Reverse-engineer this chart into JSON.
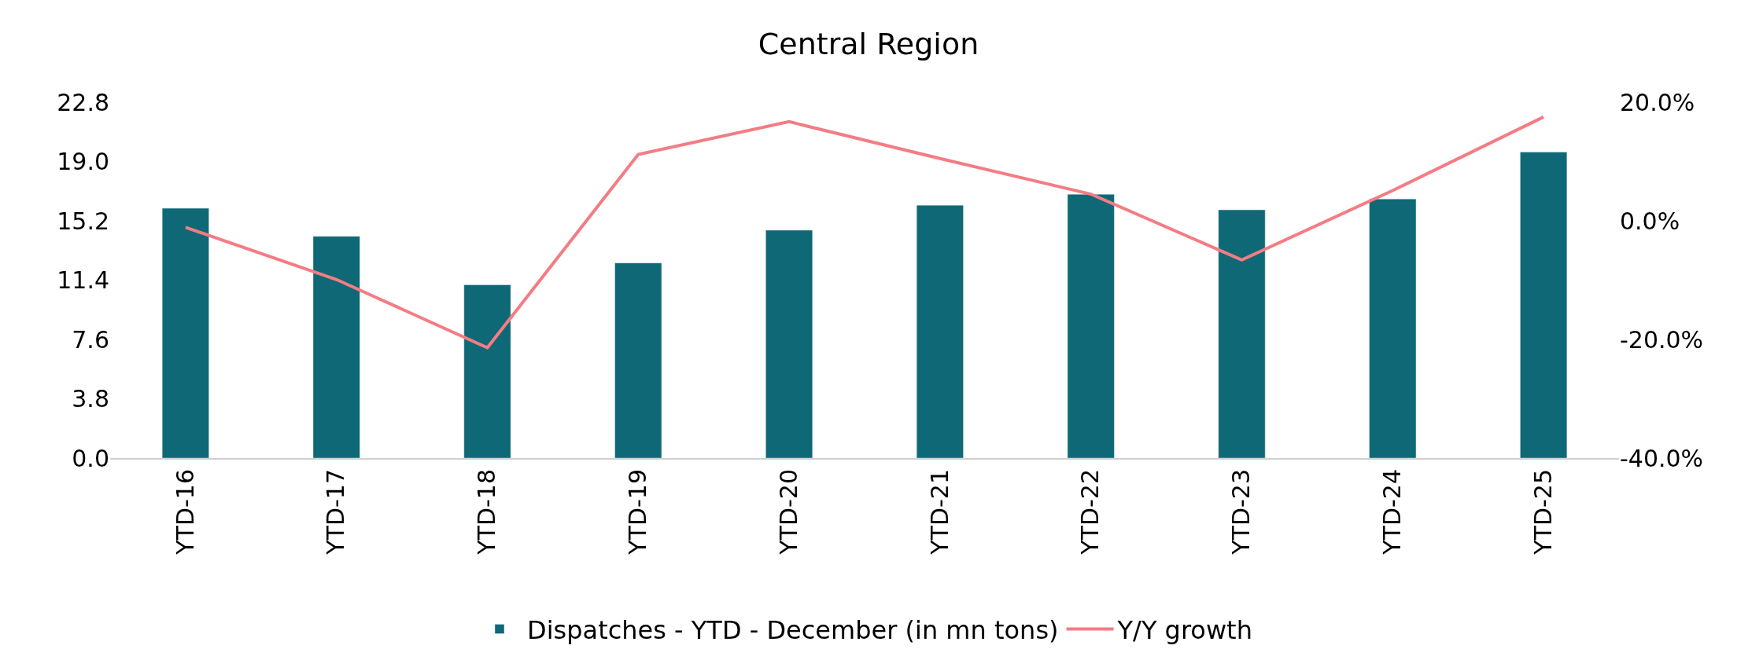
{
  "chart_data": {
    "type": "bar",
    "title": "Central Region",
    "categories": [
      "YTD-16",
      "YTD-17",
      "YTD-18",
      "YTD-19",
      "YTD-20",
      "YTD-21",
      "YTD-22",
      "YTD-23",
      "YTD-24",
      "YTD-25"
    ],
    "series": [
      {
        "name": "Dispatches - YTD - December (in mn tons)",
        "color": "#0f6875",
        "values": [
          16.0,
          14.2,
          11.1,
          12.5,
          14.6,
          16.2,
          16.9,
          15.9,
          16.6,
          19.6
        ]
      },
      {
        "name": "Y/Y growth",
        "type": "line",
        "axis": "y2",
        "color": "#f47c84",
        "values": [
          -1.1,
          -9.9,
          -21.4,
          11.2,
          16.7,
          10.5,
          4.5,
          -6.6,
          5.1,
          17.5
        ]
      }
    ],
    "ylim": [
      0,
      22.8
    ],
    "yticks": [
      {
        "value": 0,
        "label": "0.0"
      },
      3.8,
      7.6,
      11.4,
      15.2,
      {
        "value": 19,
        "label": "19.0"
      },
      22.8
    ],
    "y2lim": [
      -40,
      20
    ],
    "y2ticks": [
      {
        "value": -40,
        "label": "-40.0%"
      },
      {
        "value": -20,
        "label": "-20.0%"
      },
      {
        "value": 0,
        "label": "0.0%"
      },
      {
        "value": 20,
        "label": "20.0%"
      }
    ],
    "legend": "bottom",
    "marker": "none",
    "line_style": "solid"
  }
}
